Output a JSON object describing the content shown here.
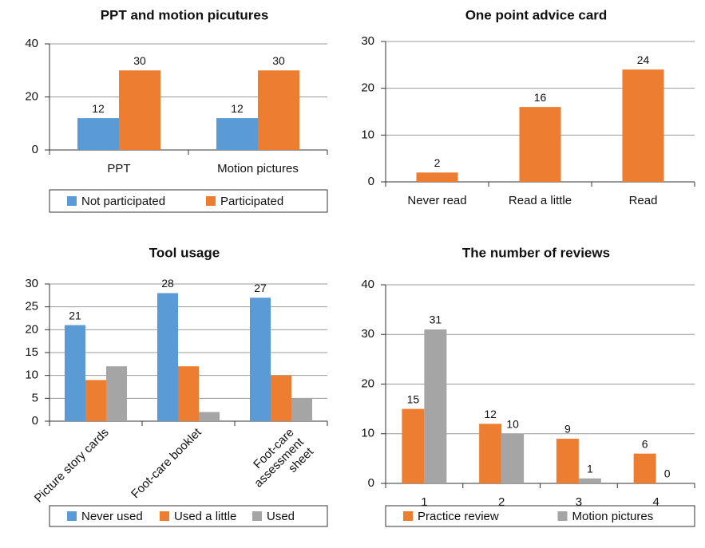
{
  "chart_data": [
    {
      "type": "bar",
      "title": "PPT and motion picutures",
      "categories": [
        "PPT",
        "Motion pictures"
      ],
      "series": [
        {
          "name": "Not participated",
          "color": "#5b9bd5",
          "values": [
            12,
            12
          ],
          "show_labels": true
        },
        {
          "name": "Participated",
          "color": "#ed7d31",
          "values": [
            30,
            30
          ],
          "show_labels": true
        }
      ],
      "ylim": [
        0,
        40
      ],
      "yticks": [
        0,
        20,
        40
      ],
      "grid": true,
      "legend": "bottom"
    },
    {
      "type": "bar",
      "title": "One point advice card",
      "categories": [
        "Never read",
        "Read a little",
        "Read"
      ],
      "series": [
        {
          "color": "#ed7d31",
          "values": [
            2,
            16,
            24
          ],
          "show_labels": true
        }
      ],
      "ylim": [
        0,
        30
      ],
      "yticks": [
        0,
        10,
        20,
        30
      ],
      "grid": true
    },
    {
      "type": "bar",
      "title": "Tool usage",
      "categories": [
        "Picture story cards",
        "Foot-care booklet",
        "Foot-care\nassessment\nsheet"
      ],
      "series": [
        {
          "name": "Never used",
          "color": "#5b9bd5",
          "values": [
            21,
            28,
            27
          ],
          "show_labels": true
        },
        {
          "name": "Used a  little",
          "color": "#ed7d31",
          "values": [
            9,
            12,
            10
          ],
          "show_labels": false
        },
        {
          "name": "Used",
          "color": "#a5a5a5",
          "values": [
            12,
            2,
            5
          ],
          "show_labels": false
        }
      ],
      "ylim": [
        0,
        30
      ],
      "yticks": [
        0,
        5,
        10,
        15,
        20,
        25,
        30
      ],
      "grid": true,
      "legend": "bottom",
      "xlabel_rotation": -45
    },
    {
      "type": "bar",
      "title": "The number of reviews",
      "categories": [
        "1",
        "2",
        "3",
        "4"
      ],
      "series": [
        {
          "name": "Practice review",
          "color": "#ed7d31",
          "values": [
            15,
            12,
            9,
            6
          ],
          "show_labels": true
        },
        {
          "name": "Motion pictures",
          "color": "#a5a5a5",
          "values": [
            31,
            10,
            1,
            0
          ],
          "show_labels": true
        }
      ],
      "ylim": [
        0,
        40
      ],
      "yticks": [
        0,
        10,
        20,
        30,
        40
      ],
      "grid": true,
      "legend": "bottom"
    }
  ]
}
